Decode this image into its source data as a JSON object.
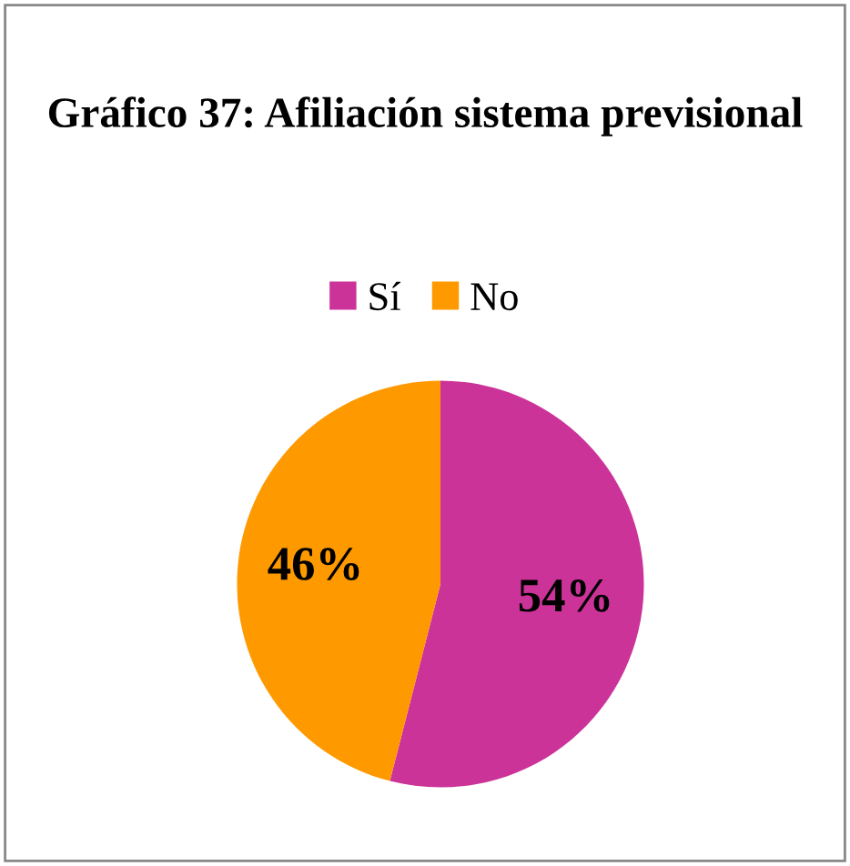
{
  "chart_data": {
    "type": "pie",
    "title": "Gráfico 37: Afiliación sistema previsional",
    "categories": [
      "Sí",
      "No"
    ],
    "values": [
      54,
      46
    ],
    "colors": [
      "#cc3399",
      "#ff9900"
    ],
    "value_labels": [
      "54%",
      "46%"
    ],
    "legend": "top"
  }
}
